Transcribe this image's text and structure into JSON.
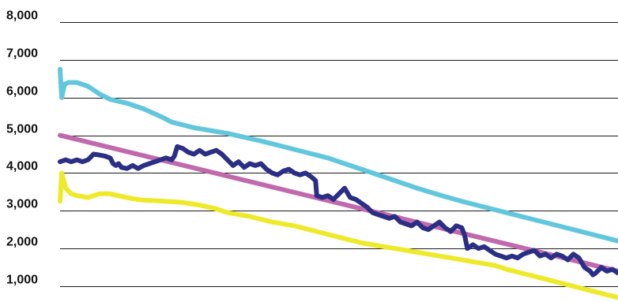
{
  "chart_data": {
    "type": "line",
    "title": "",
    "xlabel": "",
    "ylabel": "",
    "ylim": [
      0,
      8000
    ],
    "y_ticks": [
      1000,
      2000,
      3000,
      4000,
      5000,
      6000,
      7000,
      8000
    ],
    "y_tick_labels": [
      "1,000",
      "2,000",
      "3,000",
      "4,000",
      "5,000",
      "6,000",
      "7,000",
      "8,000"
    ],
    "grid": true,
    "legend": "none",
    "x_range": [
      0,
      100
    ],
    "series": [
      {
        "color": "#62c7dc",
        "points": [
          [
            0,
            6750
          ],
          [
            0.3,
            6000
          ],
          [
            0.8,
            6350
          ],
          [
            1.5,
            6400
          ],
          [
            3,
            6400
          ],
          [
            5,
            6300
          ],
          [
            7,
            6100
          ],
          [
            9,
            5950
          ],
          [
            12,
            5850
          ],
          [
            15,
            5700
          ],
          [
            18,
            5500
          ],
          [
            20,
            5350
          ],
          [
            24,
            5200
          ],
          [
            30,
            5050
          ],
          [
            36,
            4850
          ],
          [
            40,
            4700
          ],
          [
            44,
            4550
          ],
          [
            48,
            4400
          ],
          [
            52,
            4200
          ],
          [
            56,
            4000
          ],
          [
            60,
            3800
          ],
          [
            64,
            3600
          ],
          [
            68,
            3420
          ],
          [
            72,
            3250
          ],
          [
            76,
            3100
          ],
          [
            80,
            2950
          ],
          [
            84,
            2800
          ],
          [
            88,
            2650
          ],
          [
            92,
            2500
          ],
          [
            96,
            2350
          ],
          [
            100,
            2200
          ]
        ]
      },
      {
        "color": "#c06aad",
        "points": [
          [
            0,
            5000
          ],
          [
            100,
            1400
          ]
        ]
      },
      {
        "color": "#eeea2a",
        "points": [
          [
            0,
            3250
          ],
          [
            0.3,
            4000
          ],
          [
            1,
            3600
          ],
          [
            2,
            3450
          ],
          [
            3,
            3400
          ],
          [
            5,
            3350
          ],
          [
            7,
            3450
          ],
          [
            9,
            3450
          ],
          [
            11,
            3380
          ],
          [
            13,
            3320
          ],
          [
            15,
            3280
          ],
          [
            19,
            3250
          ],
          [
            22,
            3220
          ],
          [
            25,
            3150
          ],
          [
            28,
            3050
          ],
          [
            30,
            2950
          ],
          [
            34,
            2850
          ],
          [
            38,
            2700
          ],
          [
            42,
            2600
          ],
          [
            46,
            2450
          ],
          [
            50,
            2300
          ],
          [
            54,
            2150
          ],
          [
            58,
            2050
          ],
          [
            62,
            1950
          ],
          [
            66,
            1850
          ],
          [
            70,
            1750
          ],
          [
            74,
            1650
          ],
          [
            78,
            1550
          ],
          [
            80,
            1450
          ],
          [
            84,
            1300
          ],
          [
            88,
            1150
          ],
          [
            92,
            1000
          ],
          [
            96,
            850
          ],
          [
            100,
            700
          ]
        ]
      },
      {
        "color": "#2a2f85",
        "points": [
          [
            0,
            4300
          ],
          [
            1,
            4350
          ],
          [
            2,
            4300
          ],
          [
            3,
            4350
          ],
          [
            4,
            4300
          ],
          [
            5,
            4350
          ],
          [
            6,
            4500
          ],
          [
            7,
            4480
          ],
          [
            8,
            4450
          ],
          [
            9,
            4400
          ],
          [
            9.5,
            4250
          ],
          [
            10,
            4200
          ],
          [
            10.5,
            4250
          ],
          [
            11,
            4150
          ],
          [
            12,
            4120
          ],
          [
            13,
            4200
          ],
          [
            14,
            4120
          ],
          [
            15,
            4200
          ],
          [
            16,
            4250
          ],
          [
            17,
            4300
          ],
          [
            18,
            4350
          ],
          [
            19,
            4400
          ],
          [
            20,
            4350
          ],
          [
            20.5,
            4450
          ],
          [
            21,
            4700
          ],
          [
            22,
            4650
          ],
          [
            23,
            4550
          ],
          [
            24,
            4500
          ],
          [
            25,
            4600
          ],
          [
            26,
            4500
          ],
          [
            27,
            4550
          ],
          [
            28,
            4600
          ],
          [
            29,
            4500
          ],
          [
            30,
            4350
          ],
          [
            31,
            4200
          ],
          [
            32,
            4300
          ],
          [
            33,
            4150
          ],
          [
            34,
            4250
          ],
          [
            35,
            4200
          ],
          [
            36,
            4250
          ],
          [
            37,
            4100
          ],
          [
            38,
            4000
          ],
          [
            39,
            3950
          ],
          [
            40,
            4050
          ],
          [
            41,
            4100
          ],
          [
            42,
            4000
          ],
          [
            43,
            3950
          ],
          [
            44,
            4000
          ],
          [
            45,
            3900
          ],
          [
            45.8,
            3800
          ],
          [
            46,
            3400
          ],
          [
            47,
            3350
          ],
          [
            48,
            3400
          ],
          [
            49,
            3300
          ],
          [
            50,
            3450
          ],
          [
            51,
            3600
          ],
          [
            52,
            3350
          ],
          [
            53,
            3300
          ],
          [
            54,
            3200
          ],
          [
            55,
            3100
          ],
          [
            56,
            2950
          ],
          [
            57,
            2900
          ],
          [
            58,
            2850
          ],
          [
            59,
            2800
          ],
          [
            60,
            2850
          ],
          [
            61,
            2700
          ],
          [
            62,
            2650
          ],
          [
            63,
            2600
          ],
          [
            64,
            2700
          ],
          [
            65,
            2550
          ],
          [
            66,
            2500
          ],
          [
            67,
            2600
          ],
          [
            68,
            2700
          ],
          [
            69,
            2550
          ],
          [
            70,
            2450
          ],
          [
            71,
            2600
          ],
          [
            72,
            2550
          ],
          [
            72.5,
            2350
          ],
          [
            73,
            2000
          ],
          [
            74,
            2100
          ],
          [
            75,
            2000
          ],
          [
            76,
            2050
          ],
          [
            77,
            1950
          ],
          [
            78,
            1850
          ],
          [
            79,
            1800
          ],
          [
            80,
            1750
          ],
          [
            81,
            1800
          ],
          [
            82,
            1750
          ],
          [
            83,
            1850
          ],
          [
            84,
            1900
          ],
          [
            85,
            1950
          ],
          [
            86,
            1800
          ],
          [
            87,
            1850
          ],
          [
            88,
            1750
          ],
          [
            89,
            1850
          ],
          [
            90,
            1800
          ],
          [
            91,
            1700
          ],
          [
            92,
            1850
          ],
          [
            93,
            1750
          ],
          [
            94,
            1500
          ],
          [
            95,
            1400
          ],
          [
            95.5,
            1300
          ],
          [
            96,
            1350
          ],
          [
            97,
            1500
          ],
          [
            98,
            1400
          ],
          [
            99,
            1450
          ],
          [
            100,
            1350
          ]
        ]
      }
    ]
  }
}
